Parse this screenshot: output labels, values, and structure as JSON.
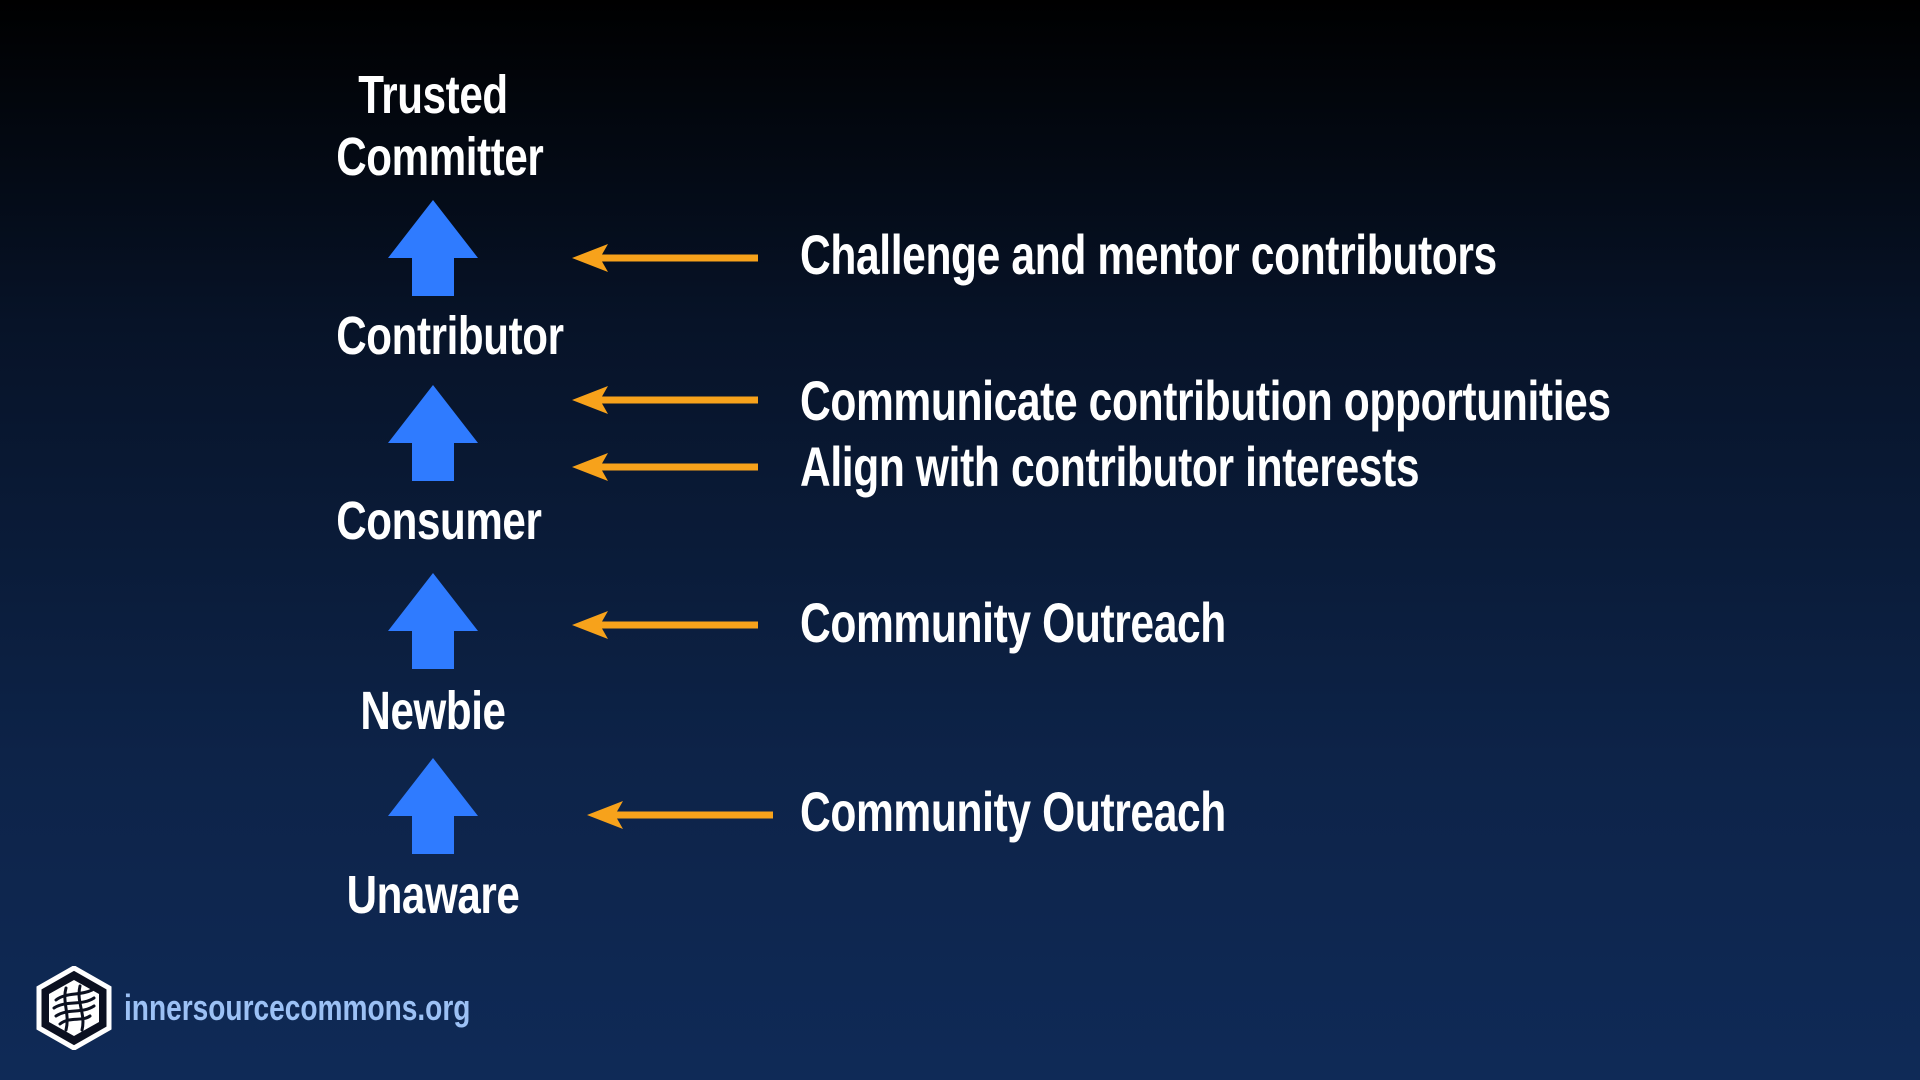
{
  "slide": {
    "levels": {
      "trusted_committer_line1": "Trusted",
      "trusted_committer_line2": "Committer",
      "contributor": "Contributor",
      "consumer": "Consumer",
      "newbie": "Newbie",
      "unaware": "Unaware"
    },
    "actions": {
      "challenge_mentor": "Challenge and mentor contributors",
      "communicate_opportunities": "Communicate contribution opportunities",
      "align_interests": "Align with contributor interests",
      "outreach_consumer": "Community Outreach",
      "outreach_newbie": "Community Outreach"
    },
    "footer": {
      "url": "innersourcecommons.org"
    }
  },
  "colors": {
    "up_arrow": "#2f7bff",
    "left_arrow": "#f7a21b",
    "text": "#ffffff",
    "footer_link": "#9cc1f5"
  },
  "icons": {
    "progression_arrow": "up-arrow-icon",
    "action_arrow": "left-arrow-icon",
    "brand_logo": "innersource-logo-icon"
  }
}
